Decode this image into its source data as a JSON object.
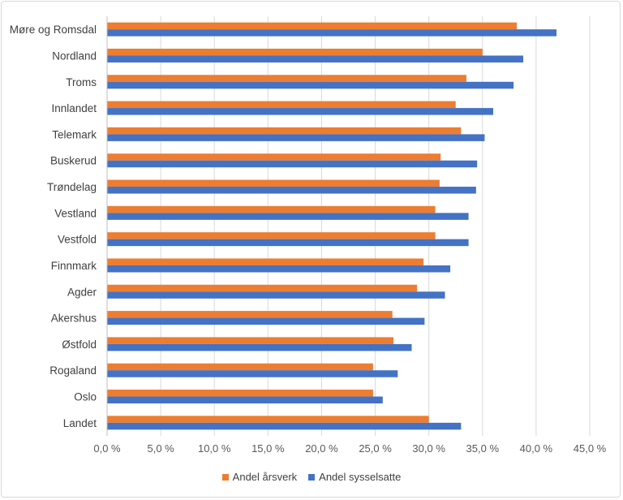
{
  "chart_data": {
    "type": "bar",
    "orientation": "horizontal",
    "categories": [
      "Møre og Romsdal",
      "Nordland",
      "Troms",
      "Innlandet",
      "Telemark",
      "Buskerud",
      "Trøndelag",
      "Vestland",
      "Vestfold",
      "Finnmark",
      "Agder",
      "Akershus",
      "Østfold",
      "Rogaland",
      "Oslo",
      "Landet"
    ],
    "series": [
      {
        "name": "Andel årsverk",
        "color": "#ED7D31",
        "values": [
          38.2,
          35.0,
          33.5,
          32.5,
          33.0,
          31.1,
          31.0,
          30.6,
          30.6,
          29.5,
          28.9,
          26.6,
          26.7,
          24.8,
          24.8,
          30.0
        ]
      },
      {
        "name": "Andel sysselsatte",
        "color": "#4472C4",
        "values": [
          41.9,
          38.8,
          37.9,
          36.0,
          35.2,
          34.5,
          34.4,
          33.7,
          33.7,
          32.0,
          31.5,
          29.6,
          28.4,
          27.1,
          25.7,
          33.0
        ]
      }
    ],
    "xlim": [
      0,
      45
    ],
    "xticks": [
      "0,0 %",
      "5,0 %",
      "10,0 %",
      "15,0 %",
      "20,0 %",
      "25,0 %",
      "30,0 %",
      "35,0 %",
      "40,0 %",
      "45,0 %"
    ],
    "grid": true,
    "legend_position": "bottom",
    "title": "",
    "xlabel": "",
    "ylabel": ""
  }
}
